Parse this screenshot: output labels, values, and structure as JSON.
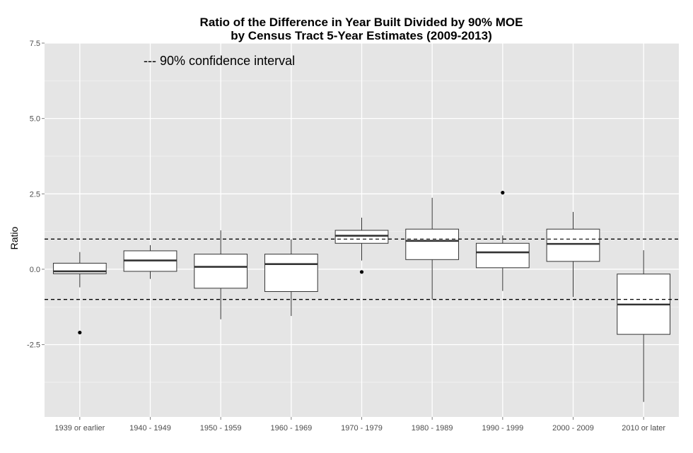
{
  "chart_data": {
    "type": "boxplot",
    "title": "Ratio of the Difference in Year Built Divided by 90% MOE",
    "subtitle": "by Census Tract 5-Year Estimates (2009-2013)",
    "xlabel": "",
    "ylabel": "Ratio",
    "ylim": [
      -4.9,
      7.5
    ],
    "yticks": [
      {
        "value": 7.5,
        "label": "7.5"
      },
      {
        "value": 5.0,
        "label": "5.0"
      },
      {
        "value": 2.5,
        "label": "2.5"
      },
      {
        "value": 0.0,
        "label": "0.0"
      },
      {
        "value": -2.5,
        "label": "-2.5"
      }
    ],
    "reference_lines": [
      1,
      -1
    ],
    "annotation": "--- 90% confidence interval",
    "grid": true,
    "categories": [
      "1939 or earlier",
      "1940 - 1949",
      "1950 - 1959",
      "1960 - 1969",
      "1970 - 1979",
      "1980 - 1989",
      "1990 - 1999",
      "2000 - 2009",
      "2010 or later"
    ],
    "boxes": [
      {
        "whisker_low": -0.6,
        "q1": -0.15,
        "median": -0.07,
        "q3": 0.2,
        "whisker_high": 0.57,
        "outliers": [
          -2.1
        ]
      },
      {
        "whisker_low": -0.32,
        "q1": -0.07,
        "median": 0.29,
        "q3": 0.61,
        "whisker_high": 0.8,
        "outliers": []
      },
      {
        "whisker_low": -1.66,
        "q1": -0.63,
        "median": 0.08,
        "q3": 0.5,
        "whisker_high": 1.29,
        "outliers": []
      },
      {
        "whisker_low": -1.55,
        "q1": -0.74,
        "median": 0.17,
        "q3": 0.5,
        "whisker_high": 0.99,
        "outliers": []
      },
      {
        "whisker_low": 0.29,
        "q1": 0.86,
        "median": 1.11,
        "q3": 1.29,
        "whisker_high": 1.71,
        "outliers": [
          -0.09
        ]
      },
      {
        "whisker_low": -1.0,
        "q1": 0.32,
        "median": 0.94,
        "q3": 1.33,
        "whisker_high": 2.37,
        "outliers": []
      },
      {
        "whisker_low": -0.72,
        "q1": 0.05,
        "median": 0.56,
        "q3": 0.86,
        "whisker_high": 1.12,
        "outliers": [
          2.54
        ]
      },
      {
        "whisker_low": -0.92,
        "q1": 0.26,
        "median": 0.84,
        "q3": 1.33,
        "whisker_high": 1.9,
        "outliers": []
      },
      {
        "whisker_low": -4.4,
        "q1": -2.16,
        "median": -1.17,
        "q3": -0.16,
        "whisker_high": 0.63,
        "outliers": []
      }
    ]
  },
  "colors": {
    "panel": "#e5e5e5",
    "grid_major": "#ffffff",
    "grid_minor": "#f2f2f2",
    "box_fill": "#ffffff",
    "box_stroke": "#333333",
    "reference_line": "#000000"
  }
}
